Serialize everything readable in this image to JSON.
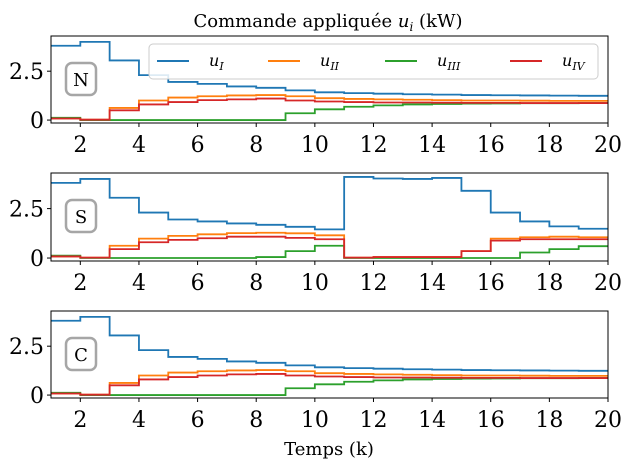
{
  "figure": {
    "title_prefix": "Commande appliquée ",
    "title_var": "u",
    "title_sub": "i",
    "title_unit": " (kW)",
    "xlabel": "Temps (k)"
  },
  "colors": {
    "u_I": "#1f77b4",
    "u_II": "#ff7f0e",
    "u_III": "#2ca02c",
    "u_IV": "#d62728"
  },
  "legend": [
    {
      "base": "u",
      "sub": "I",
      "color_key": "u_I"
    },
    {
      "base": "u",
      "sub": "II",
      "color_key": "u_II"
    },
    {
      "base": "u",
      "sub": "III",
      "color_key": "u_III"
    },
    {
      "base": "u",
      "sub": "IV",
      "color_key": "u_IV"
    }
  ],
  "chart_data": [
    {
      "type": "line",
      "step": "post",
      "panel_label": "N",
      "xlim": [
        1,
        20
      ],
      "ylim": [
        -0.15,
        4.3
      ],
      "xticks": [
        2,
        4,
        6,
        8,
        10,
        12,
        14,
        16,
        18,
        20
      ],
      "xtick_labels": [
        "2",
        "4",
        "6",
        "8",
        "10",
        "12",
        "14",
        "16",
        "18",
        "20"
      ],
      "yticks": [
        0,
        2.5
      ],
      "ytick_labels": [
        "0",
        "2.5"
      ],
      "x": [
        1,
        2,
        3,
        4,
        5,
        6,
        7,
        8,
        9,
        10,
        11,
        12,
        13,
        14,
        15,
        16,
        17,
        18,
        19,
        20
      ],
      "series": [
        {
          "name": "u_I",
          "values": [
            3.8,
            4.0,
            3.05,
            2.3,
            1.95,
            1.85,
            1.72,
            1.65,
            1.52,
            1.42,
            1.38,
            1.35,
            1.32,
            1.3,
            1.28,
            1.27,
            1.26,
            1.25,
            1.24,
            1.24
          ]
        },
        {
          "name": "u_II",
          "values": [
            0.08,
            0.02,
            0.62,
            1.0,
            1.15,
            1.22,
            1.26,
            1.28,
            1.22,
            1.12,
            1.08,
            1.06,
            1.04,
            1.02,
            1.0,
            1.0,
            0.99,
            0.98,
            0.98,
            0.98
          ]
        },
        {
          "name": "u_III",
          "values": [
            0.12,
            0.0,
            0.0,
            0.0,
            0.0,
            0.0,
            0.0,
            0.0,
            0.35,
            0.55,
            0.68,
            0.75,
            0.8,
            0.82,
            0.84,
            0.85,
            0.86,
            0.86,
            0.87,
            0.87
          ]
        },
        {
          "name": "u_IV",
          "values": [
            0.08,
            0.02,
            0.5,
            0.8,
            0.92,
            1.02,
            1.06,
            1.1,
            1.0,
            0.95,
            0.92,
            0.9,
            0.9,
            0.89,
            0.88,
            0.88,
            0.87,
            0.87,
            0.87,
            0.87
          ]
        }
      ]
    },
    {
      "type": "line",
      "step": "post",
      "panel_label": "S",
      "xlim": [
        1,
        20
      ],
      "ylim": [
        -0.15,
        4.3
      ],
      "xticks": [
        2,
        4,
        6,
        8,
        10,
        12,
        14,
        16,
        18,
        20
      ],
      "xtick_labels": [
        "2",
        "4",
        "6",
        "8",
        "10",
        "12",
        "14",
        "16",
        "18",
        "20"
      ],
      "yticks": [
        0,
        2.5
      ],
      "ytick_labels": [
        "0",
        "2.5"
      ],
      "x": [
        1,
        2,
        3,
        4,
        5,
        6,
        7,
        8,
        9,
        10,
        11,
        12,
        13,
        14,
        15,
        16,
        17,
        18,
        19,
        20
      ],
      "series": [
        {
          "name": "u_I",
          "values": [
            3.8,
            4.0,
            3.05,
            2.3,
            1.95,
            1.85,
            1.75,
            1.68,
            1.58,
            1.45,
            4.1,
            4.02,
            4.0,
            4.05,
            3.4,
            2.3,
            1.85,
            1.6,
            1.48,
            1.48
          ]
        },
        {
          "name": "u_II",
          "values": [
            0.08,
            0.02,
            0.62,
            0.98,
            1.12,
            1.2,
            1.26,
            1.28,
            1.25,
            1.15,
            0.02,
            0.05,
            0.05,
            0.05,
            0.35,
            0.98,
            1.05,
            1.08,
            1.05,
            1.05
          ]
        },
        {
          "name": "u_III",
          "values": [
            0.12,
            0.0,
            0.0,
            0.0,
            0.0,
            0.0,
            0.0,
            0.05,
            0.35,
            0.62,
            0.0,
            0.0,
            0.0,
            0.0,
            0.0,
            0.0,
            0.28,
            0.45,
            0.6,
            0.6
          ]
        },
        {
          "name": "u_IV",
          "values": [
            0.08,
            0.02,
            0.45,
            0.8,
            0.92,
            1.0,
            1.08,
            1.08,
            1.02,
            0.95,
            0.02,
            0.05,
            0.05,
            0.05,
            0.35,
            0.88,
            0.95,
            0.95,
            0.95,
            0.95
          ]
        }
      ]
    },
    {
      "type": "line",
      "step": "post",
      "panel_label": "C",
      "xlim": [
        1,
        20
      ],
      "ylim": [
        -0.15,
        4.3
      ],
      "xticks": [
        2,
        4,
        6,
        8,
        10,
        12,
        14,
        16,
        18,
        20
      ],
      "xtick_labels": [
        "2",
        "4",
        "6",
        "8",
        "10",
        "12",
        "14",
        "16",
        "18",
        "20"
      ],
      "yticks": [
        0,
        2.5
      ],
      "ytick_labels": [
        "0",
        "2.5"
      ],
      "x": [
        1,
        2,
        3,
        4,
        5,
        6,
        7,
        8,
        9,
        10,
        11,
        12,
        13,
        14,
        15,
        16,
        17,
        18,
        19,
        20
      ],
      "series": [
        {
          "name": "u_I",
          "values": [
            3.8,
            4.0,
            3.05,
            2.3,
            1.95,
            1.85,
            1.72,
            1.65,
            1.52,
            1.42,
            1.38,
            1.35,
            1.32,
            1.3,
            1.28,
            1.27,
            1.26,
            1.25,
            1.24,
            1.24
          ]
        },
        {
          "name": "u_II",
          "values": [
            0.08,
            0.02,
            0.62,
            1.0,
            1.15,
            1.22,
            1.26,
            1.28,
            1.22,
            1.12,
            1.08,
            1.06,
            1.04,
            1.02,
            1.0,
            1.0,
            0.99,
            0.98,
            0.98,
            0.98
          ]
        },
        {
          "name": "u_III",
          "values": [
            0.12,
            0.0,
            0.0,
            0.0,
            0.0,
            0.0,
            0.0,
            0.0,
            0.35,
            0.55,
            0.68,
            0.75,
            0.8,
            0.82,
            0.84,
            0.85,
            0.86,
            0.86,
            0.87,
            0.87
          ]
        },
        {
          "name": "u_IV",
          "values": [
            0.08,
            0.02,
            0.5,
            0.8,
            0.92,
            1.0,
            1.06,
            1.08,
            1.0,
            0.95,
            0.92,
            0.9,
            0.9,
            0.89,
            0.88,
            0.88,
            0.87,
            0.87,
            0.87,
            0.87
          ]
        }
      ]
    }
  ]
}
